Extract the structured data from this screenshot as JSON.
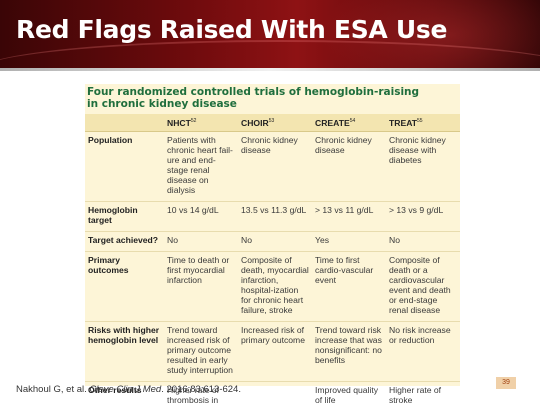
{
  "slide": {
    "title": "Red Flags Raised With ESA Use",
    "page_number": "39"
  },
  "table": {
    "heading_line1": "Four randomized controlled trials of hemoglobin-raising",
    "heading_line2": "in chronic kidney disease",
    "columns": [
      {
        "label": "",
        "ref": ""
      },
      {
        "label": "NHCT",
        "ref": "52"
      },
      {
        "label": "CHOIR",
        "ref": "53"
      },
      {
        "label": "CREATE",
        "ref": "54"
      },
      {
        "label": "TREAT",
        "ref": "55"
      }
    ],
    "rows": [
      {
        "label": "Population",
        "cells": [
          "Patients with chronic heart fail-ure and end-stage renal disease on dialysis",
          "Chronic kidney disease",
          "Chronic kidney disease",
          "Chronic kidney disease with diabetes"
        ]
      },
      {
        "label": "Hemoglobin target",
        "cells": [
          "10 vs 14 g/dL",
          "13.5 vs 11.3 g/dL",
          "> 13 vs 11 g/dL",
          "> 13 vs 9 g/dL"
        ]
      },
      {
        "label": "Target achieved?",
        "cells": [
          "No",
          "No",
          "Yes",
          "No"
        ]
      },
      {
        "label": "Primary outcomes",
        "cells": [
          "Time to death or first myocardial infarction",
          "Composite of death, myocardial infarction, hospital-ization for chronic heart failure, stroke",
          "Time to first cardio-vascular event",
          "Composite of death or a cardiovascular event and death or end-stage renal disease"
        ]
      },
      {
        "label": "Risks with higher hemoglobin level",
        "cells": [
          "Trend toward increased risk of primary outcome resulted in early study interruption",
          "Increased risk of primary outcome",
          "Trend toward risk increase that was nonsignificant: no benefits",
          "No risk increase or reduction"
        ]
      },
      {
        "label": "Other results",
        "cells": [
          "Higher rate of thrombosis in high-target group",
          "",
          "Improved quality of life",
          "Higher rate of stroke"
        ]
      }
    ]
  },
  "citation": {
    "authors": "Nakhoul G, et al.",
    "journal": "Cleve Clin J Med",
    "details": ". 2016;83:613-624."
  }
}
